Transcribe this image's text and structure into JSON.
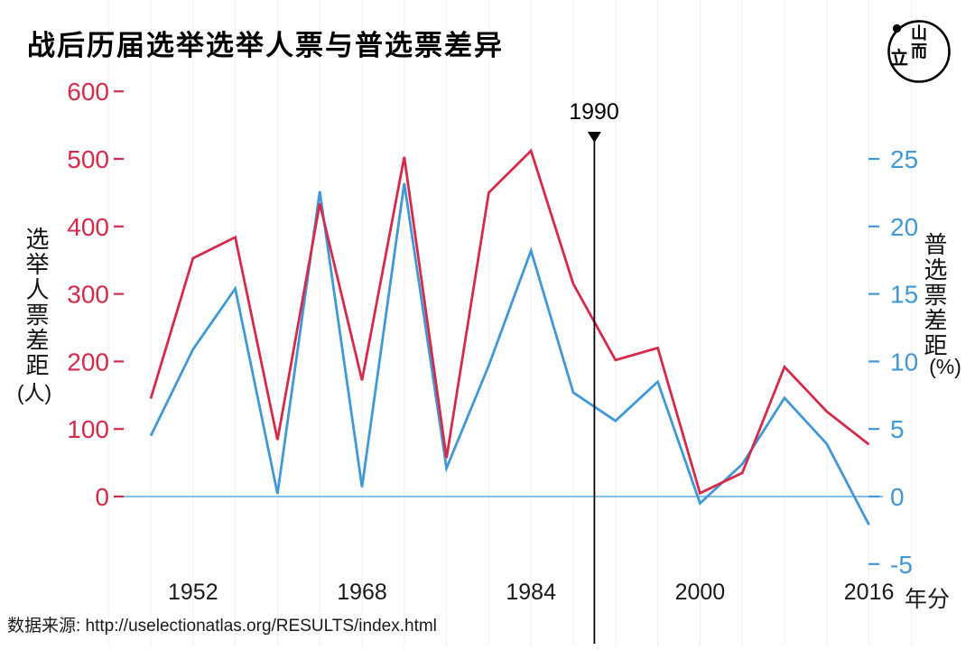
{
  "title": "战后历届选举选举人票与普选票差异",
  "logo": {
    "name": "initium-media-logo",
    "glyph_left": "立",
    "glyph_top": "山",
    "glyph_bottom": "而"
  },
  "left_axis": {
    "title": "选举人票差距",
    "unit": "(人)",
    "color": "#d62a4b",
    "ticks": [
      600,
      500,
      400,
      300,
      200,
      100,
      0
    ]
  },
  "right_axis": {
    "title": "普选票差距",
    "unit": "(%)",
    "color": "#4198d6",
    "ticks": [
      25,
      20,
      15,
      10,
      5,
      0,
      -5
    ]
  },
  "x_axis": {
    "label": "年分",
    "ticks": [
      1952,
      1968,
      1984,
      2000,
      2016
    ]
  },
  "annotation": {
    "label": "1990",
    "year": 1990
  },
  "source": "数据来源: http://uselectionatlas.org/RESULTS/index.html",
  "chart_data": {
    "type": "line",
    "x": [
      1948,
      1952,
      1956,
      1960,
      1964,
      1968,
      1972,
      1976,
      1980,
      1984,
      1988,
      1992,
      1996,
      2000,
      2004,
      2008,
      2012,
      2016
    ],
    "series": [
      {
        "name": "electoral-vote-margin",
        "label": "选举人票差距(人)",
        "axis": "left",
        "color": "#d62a4b",
        "values": [
          145,
          353,
          384,
          84,
          434,
          172,
          503,
          57,
          450,
          512,
          315,
          202,
          220,
          5,
          35,
          192,
          126,
          77
        ]
      },
      {
        "name": "popular-vote-margin",
        "label": "普选票差距(%)",
        "axis": "right",
        "color": "#4198d6",
        "values": [
          4.5,
          10.9,
          15.4,
          0.2,
          22.6,
          0.7,
          23.2,
          2.1,
          9.7,
          18.2,
          7.7,
          5.6,
          8.5,
          -0.5,
          2.4,
          7.3,
          3.9,
          -2.1
        ]
      }
    ],
    "left_ylim": [
      0,
      600
    ],
    "right_ylim": [
      -5,
      25
    ],
    "zero_line": true,
    "zero_line_color": "#70b7e6",
    "grid_color": "#f0f0f0",
    "grid": "vertical-per-election-year",
    "legend": "none"
  }
}
